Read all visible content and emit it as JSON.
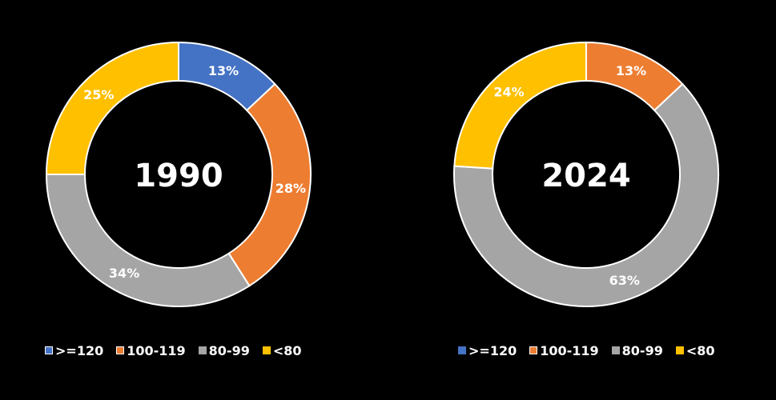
{
  "chart_data": [
    {
      "type": "pie",
      "center_label": "1990",
      "categories": [
        ">=120",
        "100-119",
        "80-99",
        "<80"
      ],
      "values": [
        13,
        28,
        34,
        25
      ],
      "value_labels": [
        "13%",
        "28%",
        "34%",
        "25%"
      ],
      "colors": [
        "#4472C4",
        "#ED7D31",
        "#A5A5A5",
        "#FFC000"
      ],
      "legend": "bottom"
    },
    {
      "type": "pie",
      "center_label": "2024",
      "categories": [
        ">=120",
        "100-119",
        "80-99",
        "<80"
      ],
      "values": [
        0,
        13,
        63,
        24
      ],
      "value_labels": [
        "",
        "13%",
        "63%",
        "24%"
      ],
      "colors": [
        "#4472C4",
        "#ED7D31",
        "#A5A5A5",
        "#FFC000"
      ],
      "legend": "bottom"
    }
  ]
}
